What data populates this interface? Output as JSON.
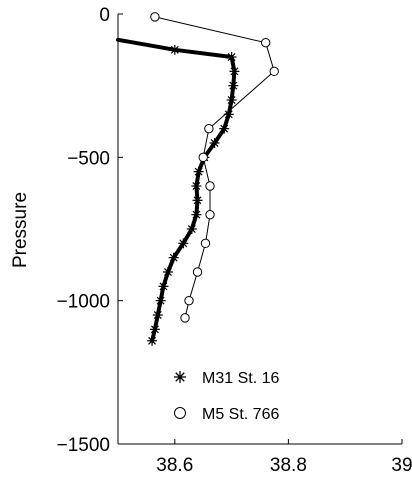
{
  "chart_data": {
    "type": "line",
    "title": "",
    "xlabel": "",
    "ylabel": "Pressure",
    "xlim": [
      38.5,
      39
    ],
    "ylim": [
      -1500,
      0
    ],
    "xticks": [
      38.6,
      38.8,
      39
    ],
    "xtick_labels": [
      "38.6",
      "38.8",
      "39"
    ],
    "yticks": [
      0,
      -500,
      -1000,
      -1500
    ],
    "ytick_labels": [
      "0",
      "−500",
      "−1000",
      "−1500"
    ],
    "grid": false,
    "legend_position": "bottom-right",
    "series": [
      {
        "name": "M31 St. 16",
        "marker": "asterisk",
        "line_style": "thick-solid",
        "color": "#000000",
        "points": [
          [
            38.5,
            -90
          ],
          [
            38.6,
            -125
          ],
          [
            38.7,
            -150
          ],
          [
            38.705,
            -200
          ],
          [
            38.703,
            -250
          ],
          [
            38.7,
            -300
          ],
          [
            38.695,
            -350
          ],
          [
            38.687,
            -400
          ],
          [
            38.67,
            -450
          ],
          [
            38.652,
            -500
          ],
          [
            38.642,
            -550
          ],
          [
            38.638,
            -600
          ],
          [
            38.64,
            -650
          ],
          [
            38.638,
            -700
          ],
          [
            38.63,
            -750
          ],
          [
            38.615,
            -800
          ],
          [
            38.598,
            -850
          ],
          [
            38.588,
            -900
          ],
          [
            38.58,
            -950
          ],
          [
            38.575,
            -1000
          ],
          [
            38.57,
            -1050
          ],
          [
            38.565,
            -1100
          ],
          [
            38.56,
            -1140
          ]
        ]
      },
      {
        "name": "M5 St. 766",
        "marker": "circle",
        "line_style": "thin-solid",
        "color": "#000000",
        "points": [
          [
            38.565,
            -10
          ],
          [
            38.76,
            -100
          ],
          [
            38.775,
            -200
          ],
          [
            38.66,
            -400
          ],
          [
            38.65,
            -500
          ],
          [
            38.662,
            -600
          ],
          [
            38.662,
            -700
          ],
          [
            38.654,
            -800
          ],
          [
            38.64,
            -900
          ],
          [
            38.625,
            -1000
          ],
          [
            38.618,
            -1060
          ]
        ]
      }
    ]
  }
}
